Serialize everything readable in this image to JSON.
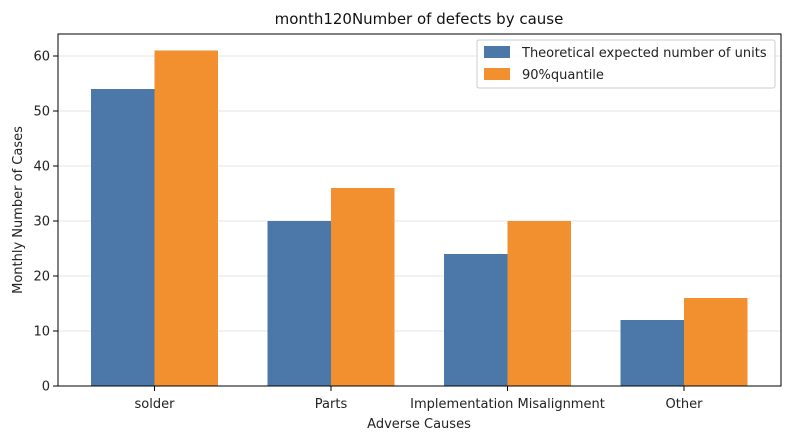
{
  "chart_data": {
    "type": "bar",
    "title": "month120Number of defects by cause",
    "xlabel": "Adverse Causes",
    "ylabel": "Monthly Number of Cases",
    "categories": [
      "solder",
      "Parts",
      "Implementation Misalignment",
      "Other"
    ],
    "series": [
      {
        "name": "Theoretical expected number of units",
        "color": "#4c77a9",
        "values": [
          54,
          30,
          24,
          12
        ]
      },
      {
        "name": "90%quantile",
        "color": "#f28f2f",
        "values": [
          61,
          36,
          30,
          16
        ]
      }
    ],
    "ylim": [
      0,
      64
    ],
    "yticks": [
      "0",
      "10",
      "20",
      "30",
      "40",
      "50",
      "60"
    ],
    "grid": "horizontal",
    "legend_position": "top-right"
  }
}
